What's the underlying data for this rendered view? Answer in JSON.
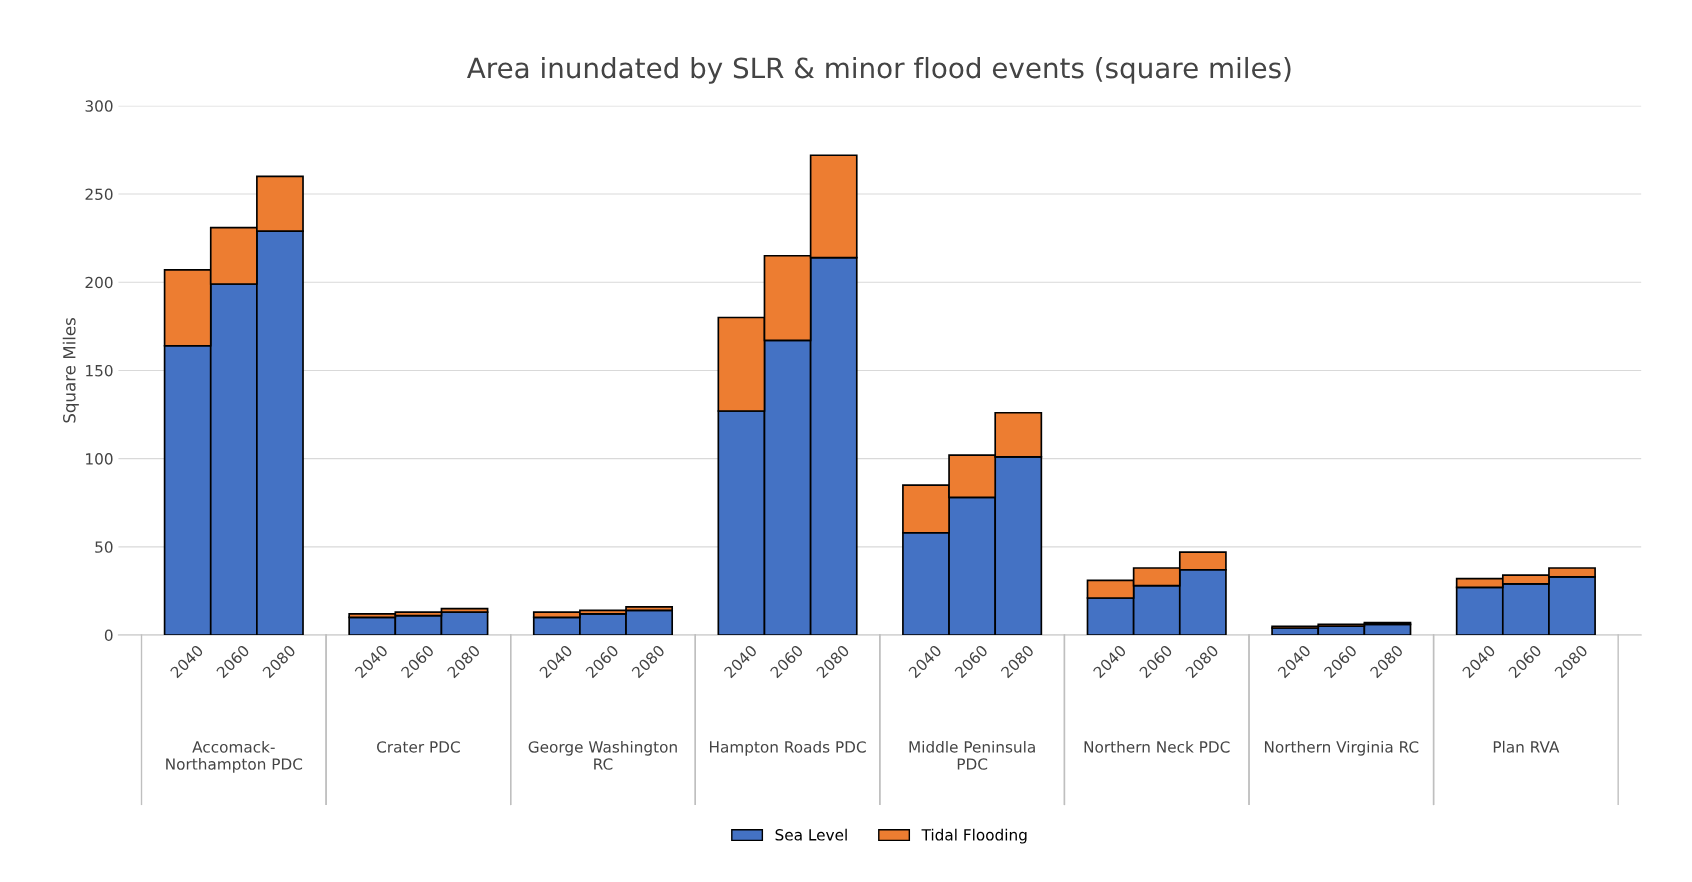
{
  "chart_data": {
    "type": "bar",
    "stacked": true,
    "title": "Area inundated by SLR & minor flood events (square miles)",
    "ylabel": "Square Miles",
    "categories": [
      "2040",
      "2060",
      "2080",
      "2040",
      "2060",
      "2080",
      "2040",
      "2060",
      "2080",
      "2040",
      "2060",
      "2080",
      "2040",
      "2060",
      "2080",
      "2040",
      "2060",
      "2080",
      "2040",
      "2060",
      "2080",
      "2040",
      "2060",
      "2080"
    ],
    "annotations": [
      "Accomack-\nNorthampton PDC",
      "Crater PDC",
      "George Washington\nRC",
      "Hampton Roads PDC",
      "Middle Peninsula\nPDC",
      "Northern Neck PDC",
      "Northern Virginia RC",
      "Plan RVA"
    ],
    "series": [
      {
        "name": "Sea Level",
        "color": "#4472c4",
        "values": [
          164,
          199,
          229,
          10,
          11,
          13,
          10,
          12,
          14,
          127,
          167,
          214,
          58,
          78,
          101,
          21,
          28,
          37,
          4,
          5,
          6,
          27,
          29,
          33
        ]
      },
      {
        "name": "Tidal Flooding",
        "color": "#ed7d31",
        "values": [
          43,
          32,
          31,
          2,
          2,
          2,
          3,
          2,
          2,
          53,
          48,
          58,
          27,
          24,
          25,
          10,
          10,
          10,
          1,
          1,
          1,
          5,
          5,
          5
        ]
      }
    ],
    "ylim": [
      0,
      300
    ],
    "yticks": [
      0,
      50,
      100,
      150,
      200,
      250,
      300
    ],
    "grid": "y",
    "legend": "bottom"
  }
}
